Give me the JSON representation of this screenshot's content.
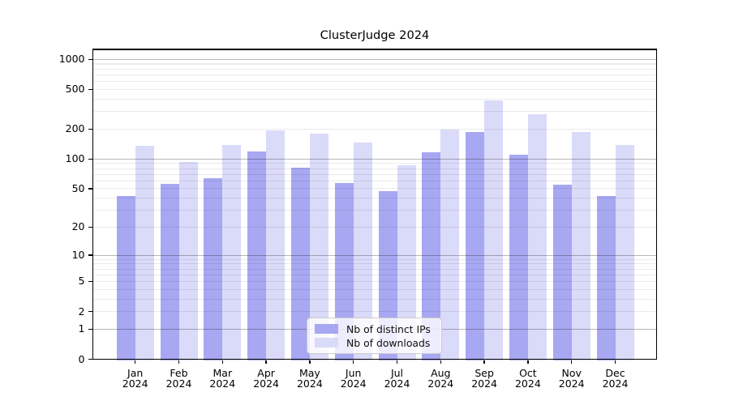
{
  "chart_data": {
    "type": "bar",
    "title": "ClusterJudge 2024",
    "categories": [
      "Jan",
      "Feb",
      "Mar",
      "Apr",
      "May",
      "Jun",
      "Jul",
      "Aug",
      "Sep",
      "Oct",
      "Nov",
      "Dec"
    ],
    "x_year": "2024",
    "series": [
      {
        "name": "Nb of distinct IPs",
        "color": "#a7a7f2",
        "values": [
          42,
          56,
          64,
          120,
          82,
          57,
          47,
          117,
          188,
          110,
          55,
          42
        ]
      },
      {
        "name": "Nb of downloads",
        "color": "#dadaf9",
        "values": [
          135,
          93,
          137,
          193,
          180,
          147,
          86,
          197,
          385,
          282,
          188,
          138
        ]
      }
    ],
    "y_scale": "log10(value+1)",
    "y_ticks": [
      0,
      1,
      2,
      5,
      10,
      20,
      50,
      100,
      200,
      500,
      1000
    ],
    "ylim": [
      0,
      1258
    ],
    "grid": {
      "major": [
        1,
        10,
        100,
        1000
      ],
      "minor_subs": [
        2,
        3,
        4,
        5,
        6,
        7,
        8,
        9
      ],
      "minor_decades": [
        1,
        10,
        100
      ]
    },
    "legend_position": "lower center",
    "legend_entries": [
      "Nb of distinct IPs",
      "Nb of downloads"
    ]
  }
}
